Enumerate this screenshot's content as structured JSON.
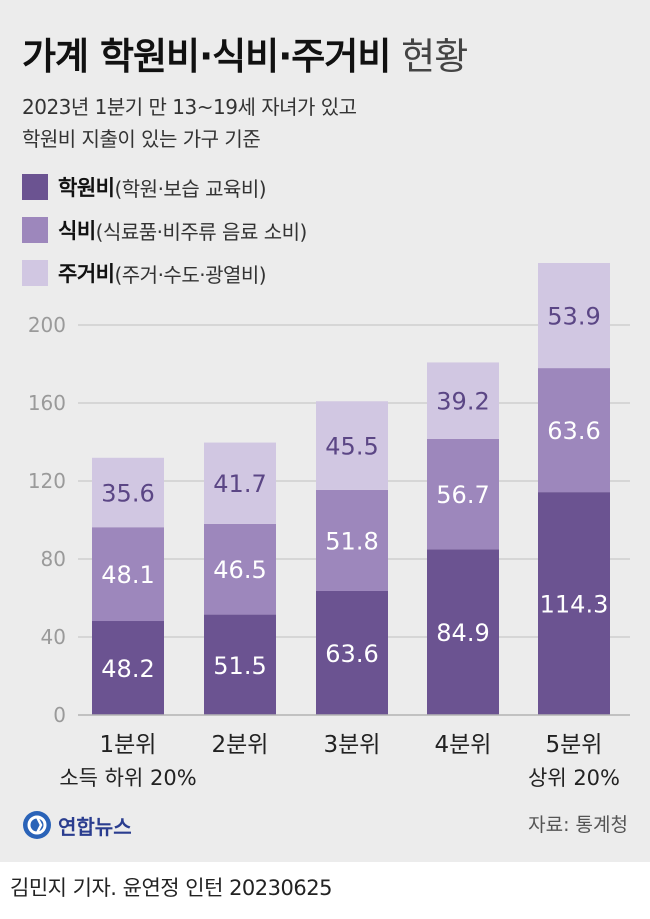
{
  "title": {
    "main": "가계 학원비·식비·주거비",
    "suffix": " 현황"
  },
  "subtitle": [
    "2023년 1분기 만 13~19세 자녀가 있고",
    "학원비 지출이 있는 가구 기준"
  ],
  "legend": [
    {
      "name": "학원비",
      "desc": "(학원·보습 교육비)",
      "color": "#6b5391"
    },
    {
      "name": "식비",
      "desc": "(식료품·비주류 음료 소비)",
      "color": "#9d87bc"
    },
    {
      "name": "주거비",
      "desc": "(주거·수도·광열비)",
      "color": "#d1c7e2"
    }
  ],
  "chart_data": {
    "type": "bar",
    "stacked": true,
    "categories": [
      "1분위",
      "2분위",
      "3분위",
      "4분위",
      "5분위"
    ],
    "category_notes": [
      "소득 하위 20%",
      "",
      "",
      "",
      "상위 20%"
    ],
    "series": [
      {
        "name": "학원비",
        "values": [
          48.2,
          51.5,
          63.6,
          84.9,
          114.3
        ]
      },
      {
        "name": "식비",
        "values": [
          48.1,
          46.5,
          51.8,
          56.7,
          63.6
        ]
      },
      {
        "name": "주거비",
        "values": [
          35.6,
          41.7,
          45.5,
          39.2,
          53.9
        ]
      }
    ],
    "yticks": [
      0,
      40,
      80,
      120,
      160,
      200
    ],
    "ytick_labels": [
      "0",
      "40",
      "80",
      "120",
      "160",
      "200"
    ],
    "ylim": [
      0,
      230
    ],
    "grid": true
  },
  "logo": {
    "text": "연합뉴스"
  },
  "source": "자료: 통계청",
  "credit": "김민지 기자. 윤연정 인턴  20230625"
}
